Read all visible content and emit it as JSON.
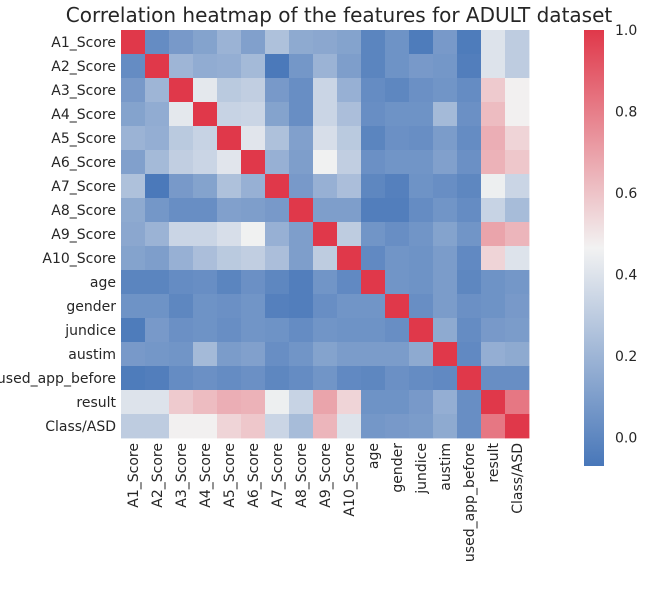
{
  "chart_data": {
    "type": "heatmap",
    "title": "Correlation heatmap of the features for ADULT dataset",
    "xlabel": "",
    "ylabel": "",
    "labels": [
      "A1_Score",
      "A2_Score",
      "A3_Score",
      "A4_Score",
      "A5_Score",
      "A6_Score",
      "A7_Score",
      "A8_Score",
      "A9_Score",
      "A10_Score",
      "age",
      "gender",
      "jundice",
      "austim",
      "used_app_before",
      "result",
      "Class/ASD"
    ],
    "matrix": [
      [
        1.0,
        0.02,
        0.08,
        0.12,
        0.19,
        0.11,
        0.25,
        0.15,
        0.14,
        0.12,
        -0.01,
        0.05,
        -0.05,
        0.08,
        -0.05,
        0.4,
        0.3
      ],
      [
        0.02,
        1.0,
        0.2,
        0.16,
        0.17,
        0.22,
        -0.06,
        0.07,
        0.19,
        0.1,
        -0.01,
        0.05,
        0.08,
        0.07,
        -0.04,
        0.4,
        0.3
      ],
      [
        0.08,
        0.2,
        1.0,
        0.42,
        0.29,
        0.31,
        0.08,
        0.03,
        0.34,
        0.18,
        0.02,
        0.0,
        0.04,
        0.06,
        0.02,
        0.58,
        0.47
      ],
      [
        0.12,
        0.16,
        0.42,
        1.0,
        0.33,
        0.34,
        0.12,
        0.03,
        0.34,
        0.24,
        0.03,
        0.05,
        0.05,
        0.22,
        0.04,
        0.62,
        0.47
      ],
      [
        0.19,
        0.17,
        0.29,
        0.33,
        1.0,
        0.41,
        0.25,
        0.11,
        0.38,
        0.29,
        -0.01,
        0.04,
        0.03,
        0.09,
        0.02,
        0.66,
        0.55
      ],
      [
        0.11,
        0.22,
        0.31,
        0.34,
        0.41,
        1.0,
        0.18,
        0.1,
        0.46,
        0.31,
        0.04,
        0.06,
        0.06,
        0.11,
        0.04,
        0.65,
        0.59
      ],
      [
        0.25,
        -0.06,
        0.08,
        0.12,
        0.25,
        0.18,
        1.0,
        0.08,
        0.18,
        0.24,
        0.0,
        -0.03,
        0.05,
        0.03,
        0.0,
        0.45,
        0.34
      ],
      [
        0.15,
        0.07,
        0.03,
        0.03,
        0.11,
        0.1,
        0.08,
        1.0,
        0.1,
        0.1,
        -0.04,
        -0.04,
        0.02,
        0.06,
        0.02,
        0.33,
        0.23
      ],
      [
        0.14,
        0.19,
        0.34,
        0.34,
        0.38,
        0.46,
        0.18,
        0.1,
        1.0,
        0.3,
        0.06,
        0.03,
        0.06,
        0.12,
        0.06,
        0.69,
        0.64
      ],
      [
        0.12,
        0.1,
        0.18,
        0.24,
        0.29,
        0.31,
        0.24,
        0.1,
        0.3,
        1.0,
        0.01,
        0.06,
        0.05,
        0.09,
        0.01,
        0.55,
        0.4
      ],
      [
        -0.01,
        -0.01,
        0.02,
        0.03,
        -0.01,
        0.04,
        0.0,
        -0.04,
        0.06,
        0.01,
        1.0,
        0.06,
        0.05,
        0.09,
        0.0,
        0.05,
        0.07
      ],
      [
        0.05,
        0.05,
        0.0,
        0.05,
        0.04,
        0.06,
        -0.03,
        -0.04,
        0.03,
        0.06,
        0.06,
        1.0,
        0.03,
        0.09,
        0.04,
        0.05,
        0.08
      ],
      [
        -0.05,
        0.08,
        0.04,
        0.05,
        0.03,
        0.06,
        0.05,
        0.02,
        0.06,
        0.05,
        0.05,
        0.03,
        1.0,
        0.15,
        0.02,
        0.08,
        0.09
      ],
      [
        0.08,
        0.07,
        0.06,
        0.22,
        0.09,
        0.11,
        0.03,
        0.06,
        0.12,
        0.09,
        0.09,
        0.09,
        0.15,
        1.0,
        0.01,
        0.17,
        0.15
      ],
      [
        -0.05,
        -0.04,
        0.02,
        0.04,
        0.02,
        0.04,
        0.0,
        0.02,
        0.06,
        0.01,
        0.0,
        0.04,
        0.02,
        0.01,
        1.0,
        0.03,
        0.03
      ],
      [
        0.4,
        0.4,
        0.58,
        0.62,
        0.66,
        0.65,
        0.45,
        0.33,
        0.69,
        0.55,
        0.05,
        0.05,
        0.08,
        0.17,
        0.03,
        1.0,
        0.82
      ],
      [
        0.3,
        0.3,
        0.47,
        0.47,
        0.55,
        0.59,
        0.34,
        0.23,
        0.64,
        0.4,
        0.07,
        0.08,
        0.09,
        0.15,
        0.03,
        0.82,
        1.0
      ]
    ],
    "vmin": -0.07,
    "vmax": 1.0,
    "colormap": {
      "low": "#4877b9",
      "mid": "#f2f2f2",
      "high": "#e0384a"
    },
    "colorbar": {
      "ticks": [
        "0.0",
        "0.2",
        "0.4",
        "0.6",
        "0.8",
        "1.0"
      ],
      "tick_values": [
        0.0,
        0.2,
        0.4,
        0.6,
        0.8,
        1.0
      ]
    },
    "grid": false
  }
}
